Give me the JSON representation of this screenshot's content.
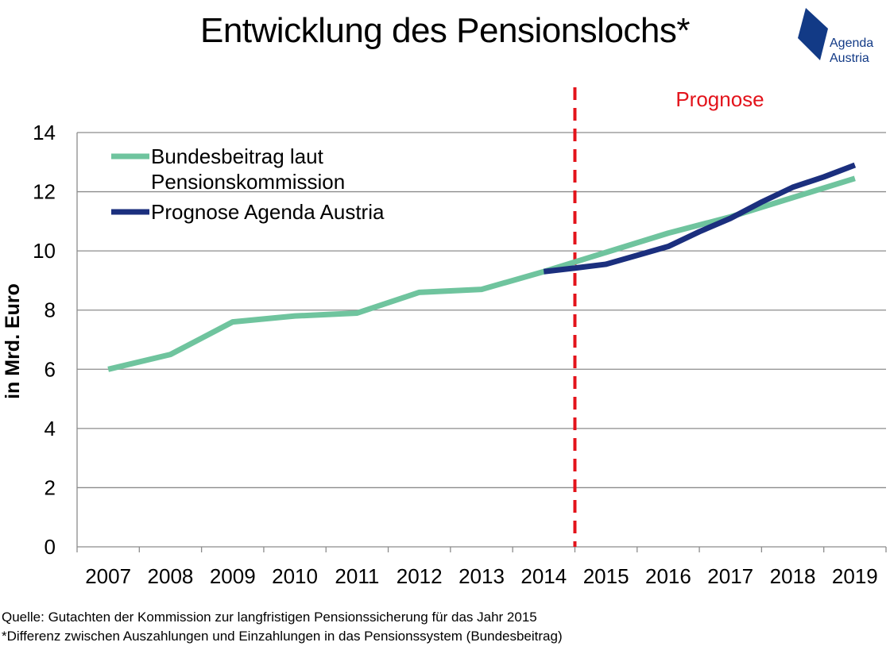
{
  "title": "Entwicklung des Pensionslochs*",
  "logo": {
    "line1": "Agenda",
    "line2": "Austria",
    "color": "#123a86"
  },
  "source_lines": [
    "Quelle: Gutachten der Kommission zur langfristigen Pensionssicherung für das Jahr 2015",
    "*Differenz zwischen Auszahlungen und Einzahlungen in das Pensionssystem (Bundesbeitrag)"
  ],
  "chart_data": {
    "type": "line",
    "title": "Entwicklung des Pensionslochs*",
    "xlabel": "",
    "ylabel": "in Mrd. Euro",
    "ylim": [
      0,
      14
    ],
    "yticks": [
      0,
      2,
      4,
      6,
      8,
      10,
      12,
      14
    ],
    "categories": [
      "2007",
      "2008",
      "2009",
      "2010",
      "2011",
      "2012",
      "2013",
      "2014",
      "2015",
      "2016",
      "2017",
      "2018",
      "2019"
    ],
    "grid": true,
    "legend_position": "top-left",
    "forecast_marker": {
      "label": "Prognose",
      "at": "2014",
      "color": "#e3131b"
    },
    "series": [
      {
        "name": "Bundesbeitrag laut Pensionskommission",
        "color": "#6fc49e",
        "x": [
          0,
          1,
          2,
          3,
          4,
          5,
          6,
          7,
          8,
          9,
          10,
          11,
          12
        ],
        "values": [
          6.0,
          6.5,
          7.6,
          7.8,
          7.9,
          8.6,
          8.7,
          9.3,
          9.95,
          10.6,
          11.15,
          11.8,
          12.45
        ]
      },
      {
        "name": "Prognose Agenda Austria",
        "color": "#1b2f7e",
        "x": [
          7,
          7.5,
          8,
          8.5,
          9,
          9.5,
          10,
          10.5,
          11,
          11.5,
          12
        ],
        "values": [
          9.3,
          9.42,
          9.55,
          9.85,
          10.15,
          10.65,
          11.1,
          11.65,
          12.15,
          12.5,
          12.9
        ]
      }
    ]
  }
}
